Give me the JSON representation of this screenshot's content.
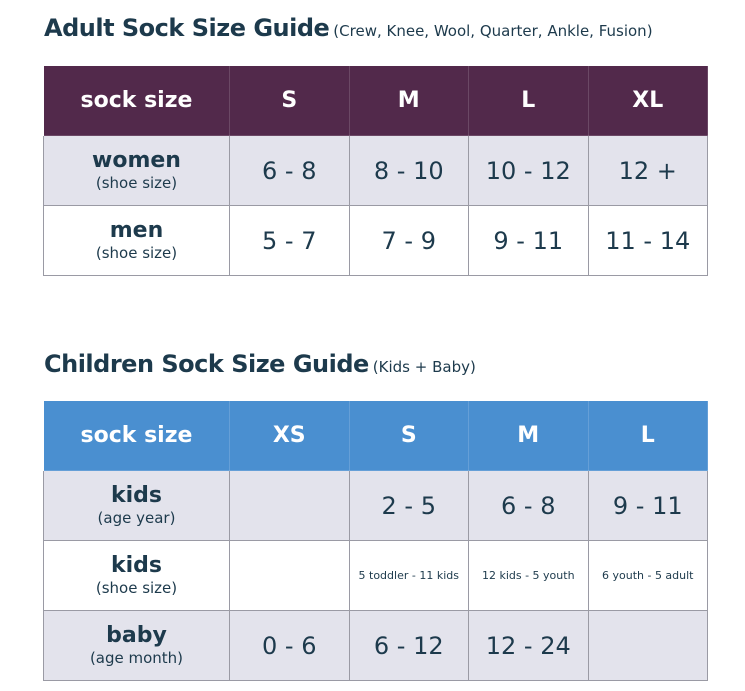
{
  "adult": {
    "title": "Adult Sock Size Guide",
    "subtitle": "(Crew, Knee, Wool, Quarter, Ankle, Fusion)",
    "header_color": "#52294b",
    "headers": [
      "sock size",
      "S",
      "M",
      "L",
      "XL"
    ],
    "rows": [
      {
        "label": "women",
        "sublabel": "(shoe size)",
        "cells": [
          "6 - 8",
          "8 - 10",
          "10 - 12",
          "12 +"
        ]
      },
      {
        "label": "men",
        "sublabel": "(shoe size)",
        "cells": [
          "5 - 7",
          "7 - 9",
          "9 - 11",
          "11 - 14"
        ]
      }
    ]
  },
  "children": {
    "title": "Children Sock Size Guide",
    "subtitle": "(Kids + Baby)",
    "header_color": "#4a8fd0",
    "headers": [
      "sock size",
      "XS",
      "S",
      "M",
      "L"
    ],
    "rows": [
      {
        "label": "kids",
        "sublabel": "(age year)",
        "cells": [
          "",
          "2 - 5",
          "6 - 8",
          "9 - 11"
        ]
      },
      {
        "label": "kids",
        "sublabel": "(shoe size)",
        "cells": [
          "",
          "5 toddler - 11 kids",
          "12 kids - 5 youth",
          "6 youth - 5 adult"
        ]
      },
      {
        "label": "baby",
        "sublabel": "(age month)",
        "cells": [
          "0 - 6",
          "6 - 12",
          "12 - 24",
          ""
        ]
      }
    ]
  }
}
